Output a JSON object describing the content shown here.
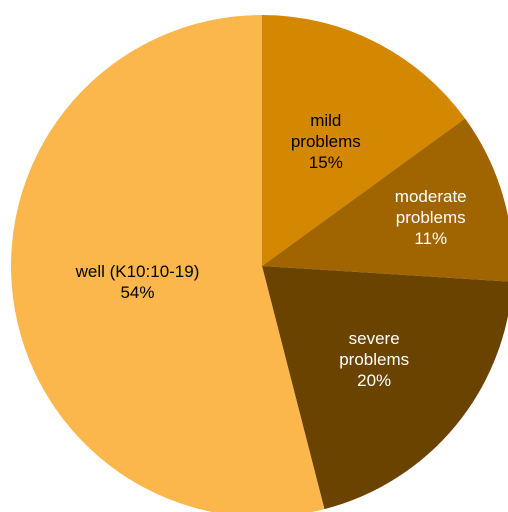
{
  "chart_data": {
    "type": "pie",
    "start": "12 o'clock, clockwise",
    "slices": [
      {
        "label_lines": [
          "mild",
          "problems",
          "15%"
        ],
        "value": 15,
        "color": "#d48700",
        "text_color": "#000000"
      },
      {
        "label_lines": [
          "moderate",
          "problems",
          "11%"
        ],
        "value": 11,
        "color": "#a16500",
        "text_color": "#ffffff"
      },
      {
        "label_lines": [
          "severe",
          "problems",
          "20%"
        ],
        "value": 20,
        "color": "#6a4300",
        "text_color": "#ffffff"
      },
      {
        "label_lines": [
          "well (K10:10-19)",
          "54%"
        ],
        "value": 54,
        "color": "#fbb64c",
        "text_color": "#000000"
      }
    ]
  }
}
